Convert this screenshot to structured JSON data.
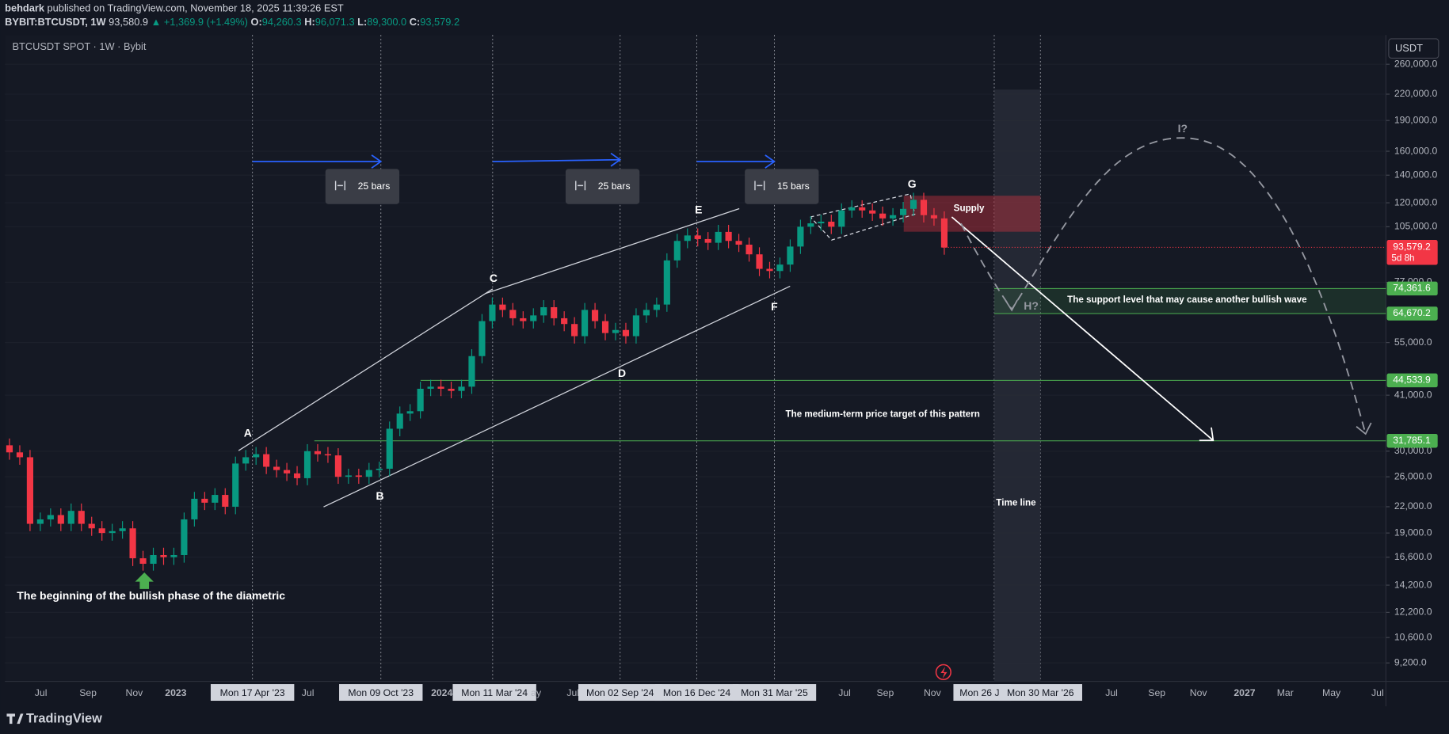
{
  "header": {
    "author": "behdark",
    "published": "published on TradingView.com, November 18, 2025 11:39:26 EST",
    "symbol": "BYBIT:BTCUSDT, 1W",
    "last": "93,580.9",
    "change": "▲ +1,369.9 (+1.49%)",
    "ohlc": [
      {
        "key": "O:",
        "value": "94,260.3"
      },
      {
        "key": "H:",
        "value": "96,071.3"
      },
      {
        "key": "L:",
        "value": "89,300.0"
      },
      {
        "key": "C:",
        "value": "93,579.2"
      }
    ]
  },
  "legend": "BTCUSDT SPOT · 1W · Bybit",
  "currency": "USDT",
  "chart_data": {
    "type": "candlestick",
    "up_color": "#089981",
    "down_color": "#f23645",
    "log_scale": true,
    "grid": true,
    "ylim": [
      8300,
      306000
    ],
    "yticks": [
      {
        "value": 260000,
        "label": "260,000.0"
      },
      {
        "value": 220000,
        "label": "220,000.0"
      },
      {
        "value": 190000,
        "label": "190,000.0"
      },
      {
        "value": 160000,
        "label": "160,000.0"
      },
      {
        "value": 140000,
        "label": "140,000.0"
      },
      {
        "value": 120000,
        "label": "120,000.0"
      },
      {
        "value": 105000,
        "label": "105,000.0"
      },
      {
        "value": 77000,
        "label": "77,000.0"
      },
      {
        "value": 55000,
        "label": "55,000.0"
      },
      {
        "value": 41000,
        "label": "41,000.0"
      },
      {
        "value": 30000,
        "label": "30,000.0"
      },
      {
        "value": 26000,
        "label": "26,000.0"
      },
      {
        "value": 22000,
        "label": "22,000.0"
      },
      {
        "value": 19000,
        "label": "19,000.0"
      },
      {
        "value": 16600,
        "label": "16,600.0"
      },
      {
        "value": 14200,
        "label": "14,200.0"
      },
      {
        "value": 12200,
        "label": "12,200.0"
      },
      {
        "value": 10600,
        "label": "10,600.0"
      },
      {
        "value": 9200,
        "label": "9,200.0"
      }
    ],
    "candles": [
      [
        31000,
        32200,
        28600,
        29800
      ],
      [
        29800,
        31000,
        27800,
        29000
      ],
      [
        29000,
        30200,
        19200,
        20000
      ],
      [
        20000,
        21300,
        19200,
        20500
      ],
      [
        20500,
        21800,
        19700,
        21000
      ],
      [
        21000,
        21800,
        19200,
        20000
      ],
      [
        20000,
        22400,
        19200,
        21500
      ],
      [
        21500,
        22400,
        19200,
        20000
      ],
      [
        20000,
        20800,
        18700,
        19500
      ],
      [
        19500,
        20300,
        18200,
        19000
      ],
      [
        19000,
        20000,
        18200,
        19200
      ],
      [
        19200,
        20300,
        18400,
        19500
      ],
      [
        19500,
        20300,
        15800,
        16500
      ],
      [
        16500,
        17200,
        15400,
        16000
      ],
      [
        16000,
        17500,
        15400,
        16800
      ],
      [
        16800,
        17500,
        15900,
        16600
      ],
      [
        16600,
        17500,
        15900,
        16800
      ],
      [
        16800,
        21300,
        16100,
        20500
      ],
      [
        20500,
        23900,
        19700,
        23000
      ],
      [
        23000,
        23900,
        21600,
        22500
      ],
      [
        22500,
        24400,
        21600,
        23500
      ],
      [
        23500,
        24400,
        21100,
        22000
      ],
      [
        22000,
        29100,
        21100,
        28000
      ],
      [
        28000,
        30200,
        26900,
        29000
      ],
      [
        29000,
        30700,
        27800,
        29500
      ],
      [
        29500,
        30700,
        26400,
        27500
      ],
      [
        27500,
        28600,
        25900,
        27000
      ],
      [
        27000,
        28100,
        25400,
        26500
      ],
      [
        26500,
        27600,
        24800,
        25800
      ],
      [
        25800,
        31200,
        24800,
        30000
      ],
      [
        30000,
        31200,
        28300,
        29500
      ],
      [
        29500,
        30700,
        28100,
        29300
      ],
      [
        29300,
        30500,
        25000,
        26000
      ],
      [
        26000,
        27200,
        25000,
        26200
      ],
      [
        26200,
        27200,
        25000,
        26000
      ],
      [
        26000,
        28100,
        25000,
        27000
      ],
      [
        27000,
        28300,
        25900,
        27200
      ],
      [
        27200,
        35400,
        26100,
        34000
      ],
      [
        34000,
        38500,
        32600,
        37000
      ],
      [
        37000,
        39000,
        35500,
        37500
      ],
      [
        37500,
        44200,
        36000,
        42500
      ],
      [
        42500,
        44700,
        40800,
        43000
      ],
      [
        43000,
        44700,
        40800,
        42500
      ],
      [
        42500,
        44200,
        40300,
        42000
      ],
      [
        42000,
        44700,
        40300,
        43000
      ],
      [
        43000,
        53000,
        41300,
        51000
      ],
      [
        51000,
        64500,
        49000,
        62000
      ],
      [
        62000,
        70700,
        59500,
        68000
      ],
      [
        68000,
        70700,
        63400,
        66000
      ],
      [
        66000,
        68600,
        60500,
        63000
      ],
      [
        63000,
        65500,
        59500,
        62000
      ],
      [
        62000,
        66600,
        59500,
        64000
      ],
      [
        64000,
        69700,
        61400,
        67000
      ],
      [
        67000,
        69700,
        60500,
        63000
      ],
      [
        63000,
        65500,
        58600,
        61000
      ],
      [
        61000,
        63400,
        54700,
        57000
      ],
      [
        57000,
        68600,
        54700,
        66000
      ],
      [
        66000,
        68600,
        59500,
        62000
      ],
      [
        62000,
        64500,
        55700,
        58000
      ],
      [
        58000,
        61400,
        55700,
        59000
      ],
      [
        59000,
        61400,
        54700,
        57000
      ],
      [
        57000,
        66600,
        54700,
        64000
      ],
      [
        64000,
        68600,
        61400,
        66000
      ],
      [
        66000,
        70700,
        63400,
        68000
      ],
      [
        68000,
        90500,
        65300,
        87000
      ],
      [
        87000,
        100900,
        83500,
        97000
      ],
      [
        97000,
        104000,
        93100,
        100000
      ],
      [
        100000,
        104000,
        94100,
        98000
      ],
      [
        98000,
        101900,
        92200,
        96000
      ],
      [
        96000,
        106100,
        92200,
        102000
      ],
      [
        102000,
        106100,
        93100,
        97000
      ],
      [
        97000,
        100900,
        91200,
        95000
      ],
      [
        95000,
        98800,
        86400,
        90000
      ],
      [
        90000,
        93600,
        79700,
        83000
      ],
      [
        83000,
        86300,
        78700,
        82000
      ],
      [
        82000,
        88400,
        78700,
        85000
      ],
      [
        85000,
        97800,
        81600,
        94000
      ],
      [
        94000,
        109200,
        90200,
        105000
      ],
      [
        105000,
        111300,
        100800,
        107000
      ],
      [
        107000,
        112300,
        102700,
        108000
      ],
      [
        108000,
        112300,
        100800,
        105000
      ],
      [
        105000,
        119600,
        100800,
        115000
      ],
      [
        115000,
        121700,
        110400,
        117000
      ],
      [
        117000,
        121700,
        110400,
        115000
      ],
      [
        115000,
        119600,
        108500,
        113000
      ],
      [
        113000,
        117500,
        105600,
        110000
      ],
      [
        110000,
        116500,
        105600,
        112000
      ],
      [
        112000,
        120600,
        107500,
        116000
      ],
      [
        116000,
        126900,
        111400,
        122000
      ],
      [
        122000,
        126900,
        107500,
        112000
      ],
      [
        112000,
        116500,
        105600,
        110000
      ],
      [
        110000,
        114400,
        89800,
        93500
      ]
    ]
  },
  "levels": [
    {
      "value": 74361.6,
      "label": "74,361.6",
      "color": "#4caf50"
    },
    {
      "value": 64670.2,
      "label": "64,670.2",
      "color": "#4caf50"
    },
    {
      "value": 44533.9,
      "label": "44,533.9",
      "color": "#4caf50"
    },
    {
      "value": 31785.1,
      "label": "31,785.1",
      "color": "#4caf50"
    }
  ],
  "current_price": {
    "value": 93579.2,
    "label": "93,579.2",
    "countdown": "5d 8h",
    "color": "#f23645"
  },
  "time_axis": [
    {
      "label": "Jul"
    },
    {
      "label": "Sep"
    },
    {
      "label": "Nov"
    },
    {
      "label": "2023"
    },
    {
      "label": "Mon 17 Apr '23",
      "highlight": true
    },
    {
      "label": "Jul"
    },
    {
      "label": "Mon 09 Oct '23",
      "highlight": true
    },
    {
      "label": "2024"
    },
    {
      "label": "Mon 11 Mar '24",
      "highlight": true
    },
    {
      "label": "ay"
    },
    {
      "label": "Jul"
    },
    {
      "label": "Mon 02 Sep '24",
      "highlight": true
    },
    {
      "label": "Mon 16 Dec '24",
      "highlight": true
    },
    {
      "label": "Mon 31 Mar '25",
      "highlight": true
    },
    {
      "label": "Jul"
    },
    {
      "label": "Sep"
    },
    {
      "label": "Nov"
    },
    {
      "label": "Mon 26 Ja",
      "highlight": true
    },
    {
      "label": "Mon 30 Mar '26",
      "highlight": true
    },
    {
      "label": "Jul"
    },
    {
      "label": "Sep"
    },
    {
      "label": "Nov"
    },
    {
      "label": "2027"
    },
    {
      "label": "Mar"
    },
    {
      "label": "May"
    },
    {
      "label": "Jul"
    }
  ],
  "annotations": {
    "waves": [
      "A",
      "B",
      "C",
      "D",
      "E",
      "F",
      "G",
      "H?",
      "I?"
    ],
    "bar_counts": [
      "25 bars",
      "25 bars",
      "15 bars"
    ],
    "supply": "Supply",
    "support": "The support level that may cause another bullish wave",
    "target": "The medium-term price target of this pattern",
    "time_line": "Time line",
    "beginning": "The beginning of the bullish phase of the diametric"
  },
  "footer": "TradingView"
}
